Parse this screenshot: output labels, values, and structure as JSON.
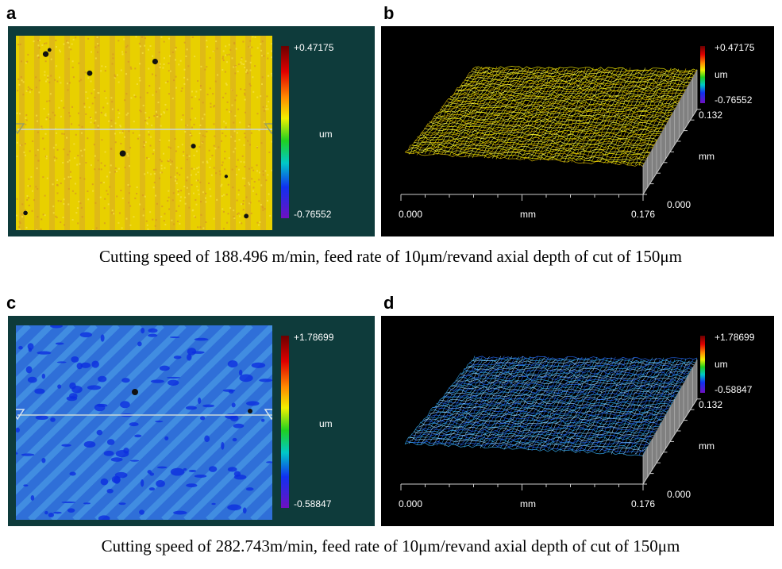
{
  "panels": [
    {
      "label": "a",
      "colorbar_max": "+0.47175",
      "unit": "um",
      "colorbar_min": "-0.76552"
    },
    {
      "label": "b",
      "colorbar_max": "+0.47175",
      "unit": "um",
      "colorbar_min": "-0.76552",
      "y_max": "0.132",
      "y_axis_label": "mm",
      "y_min": "0.000",
      "x_min": "0.000",
      "x_axis_label": "mm",
      "x_max": "0.176"
    },
    {
      "label": "c",
      "colorbar_max": "+1.78699",
      "unit": "um",
      "colorbar_min": "-0.58847"
    },
    {
      "label": "d",
      "colorbar_max": "+1.78699",
      "unit": "um",
      "colorbar_min": "-0.58847",
      "y_max": "0.132",
      "y_axis_label": "mm",
      "y_min": "0.000",
      "x_min": "0.000",
      "x_axis_label": "mm",
      "x_max": "0.176"
    }
  ],
  "captions": [
    "Cutting speed of 188.496 m/min, feed rate of 10μm/revand axial depth of cut of 150μm",
    "Cutting speed of 282.743m/min, feed rate of 10μm/revand axial depth of cut of 150μm"
  ]
}
